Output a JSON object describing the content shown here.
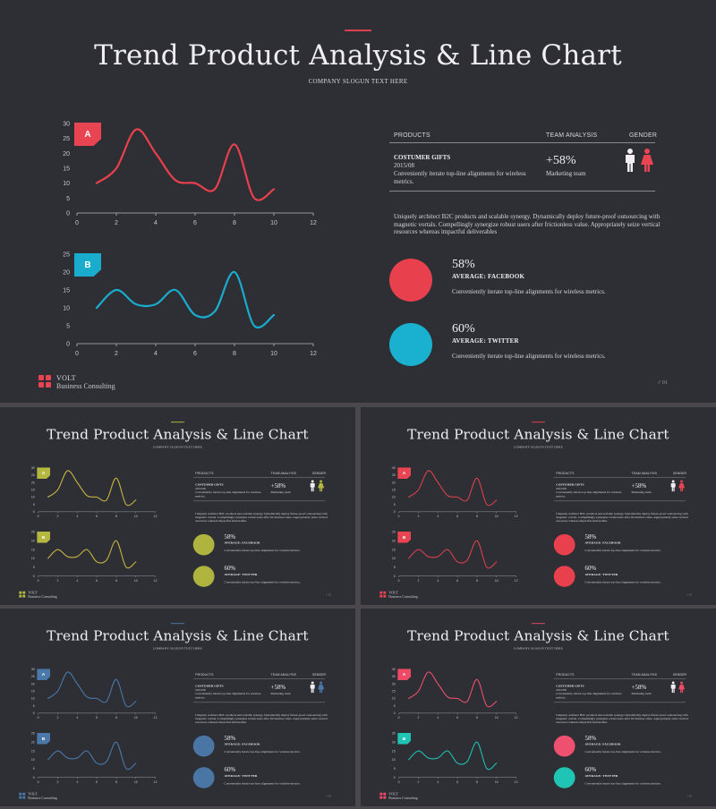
{
  "title": "Trend Product Analysis & Line Chart",
  "slogan": "COMPANY SLOGUN TEXT HERE",
  "table": {
    "headers": [
      "PRODUCTS",
      "TEAM ANALYSIS",
      "GENDER"
    ],
    "row": {
      "title": "COSTUMER GIFTS",
      "date": "2015/08",
      "desc": "Conveniently iterate top-line alignments for wireless metrics.",
      "pct": "+58%",
      "team": "Marketing team"
    }
  },
  "paragraph": "Uniquely architect B2C products and scalable synergy. Dynamically deploy future-proof outsourcing with magnetic vortals. Compellingly synergize robust users after frictionless value. Appropriately seize vertical resources whereas impactful deliverables",
  "stats": [
    {
      "pct": "58%",
      "label": "AVERAGE: FACEBOOK",
      "desc": "Conveniently iterate top-line alignments for wireless metrics."
    },
    {
      "pct": "60%",
      "label": "AVERAGE: TWITTER",
      "desc": "Conveniently iterate top-line alignments for wireless metrics."
    }
  ],
  "brand": {
    "name": "VOLT",
    "sub": "Business Consulting"
  },
  "page_number": "01",
  "chart_data": [
    {
      "type": "line",
      "label": "A",
      "x": [
        1,
        2,
        3,
        4,
        5,
        6,
        7,
        8,
        9,
        10
      ],
      "values": [
        10,
        15,
        28,
        20,
        11,
        10,
        8,
        23,
        5,
        8
      ],
      "yticks": [
        0,
        5,
        10,
        15,
        20,
        25,
        30
      ],
      "xticks": [
        0,
        2,
        4,
        6,
        8,
        10,
        12
      ],
      "ylim": [
        0,
        30
      ],
      "xlim": [
        0,
        12
      ]
    },
    {
      "type": "line",
      "label": "B",
      "x": [
        1,
        2,
        3,
        4,
        5,
        6,
        7,
        8,
        9,
        10
      ],
      "values": [
        10,
        15,
        11,
        11,
        15,
        8,
        9,
        20,
        5,
        8
      ],
      "yticks": [
        0,
        5,
        10,
        15,
        20,
        25
      ],
      "xticks": [
        0,
        2,
        4,
        6,
        8,
        10,
        12
      ],
      "ylim": [
        0,
        25
      ],
      "xlim": [
        0,
        12
      ]
    }
  ],
  "themes": [
    {
      "dash": "#e0404f",
      "a": "#e84452",
      "b": "#e84452",
      "lineA": "#e8404c",
      "lineB": "#1aaccc",
      "tagA": "#e84452",
      "tagB": "#1aaccc",
      "c1": "#e8404c",
      "c2": "#1ab0d0",
      "male": "#f0eef2",
      "female": "#e84452",
      "logo": "#e84452"
    },
    {
      "dash": "#b4b840",
      "a": "#b4b840",
      "b": "#b4b840",
      "lineA": "#c8b440",
      "lineB": "#c8b440",
      "tagA": "#b4b840",
      "tagB": "#b4b840",
      "c1": "#aeb43e",
      "c2": "#aeb43e",
      "male": "#f0eef2",
      "female": "#b4b840",
      "logo": "#b4b840"
    },
    {
      "dash": "#e0404f",
      "a": "#e84452",
      "b": "#e84452",
      "lineA": "#d8404c",
      "lineB": "#d8404c",
      "tagA": "#e84452",
      "tagB": "#e84452",
      "c1": "#e8404c",
      "c2": "#e8404c",
      "male": "#f0eef2",
      "female": "#e84452",
      "logo": "#e84452"
    },
    {
      "dash": "#4a78a8",
      "a": "#4a78a8",
      "b": "#4a78a8",
      "lineA": "#4a78a8",
      "lineB": "#4a78a8",
      "tagA": "#4a78a8",
      "tagB": "#4a78a8",
      "c1": "#4a76a6",
      "c2": "#4a76a6",
      "male": "#f0eef2",
      "female": "#4a78a8",
      "logo": "#4a78a8"
    },
    {
      "dash": "#e84a62",
      "a": "#ee4a66",
      "b": "#20c4b4",
      "lineA": "#e8506a",
      "lineB": "#20c0b0",
      "tagA": "#ee4a66",
      "tagB": "#20c4b4",
      "c1": "#f05070",
      "c2": "#20c4b4",
      "male": "#f0eef2",
      "female": "#ee4a66",
      "logo": "#ee4a66"
    }
  ]
}
